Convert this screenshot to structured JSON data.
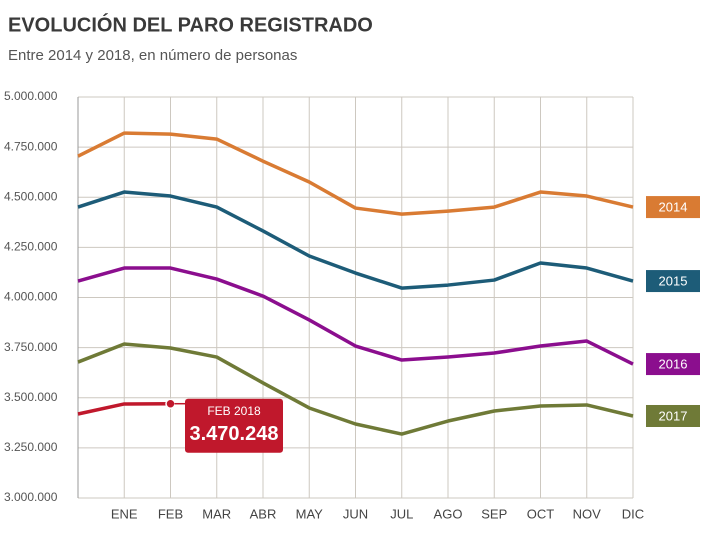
{
  "chart_data": {
    "type": "line",
    "title": "EVOLUCIÓN DEL PARO REGISTRADO",
    "subtitle": "Entre 2014 y 2018, en número de personas",
    "categories": [
      null,
      "ENE",
      "FEB",
      "MAR",
      "ABR",
      "MAY",
      "JUN",
      "JUL",
      "AGO",
      "SEP",
      "OCT",
      "NOV",
      "DIC"
    ],
    "series": [
      {
        "name": "2014",
        "color": "#d97b33",
        "values": [
          4705000,
          4820000,
          4815000,
          4790000,
          4680000,
          4576000,
          4446000,
          4416000,
          4431000,
          4451000,
          4526000,
          4506000,
          4451000
        ]
      },
      {
        "name": "2015",
        "color": "#1d5c78",
        "values": [
          4451000,
          4526000,
          4506000,
          4451000,
          4332000,
          4207000,
          4122000,
          4047000,
          4062000,
          4087000,
          4172000,
          4147000,
          4082000
        ]
      },
      {
        "name": "2016",
        "color": "#8b0e8e",
        "values": [
          4082000,
          4147000,
          4147000,
          4092000,
          4007000,
          3888000,
          3758000,
          3688000,
          3703000,
          3723000,
          3758000,
          3783000,
          3668000
        ]
      },
      {
        "name": "2017",
        "color": "#6f7a37",
        "values": [
          3678000,
          3768000,
          3748000,
          3703000,
          3574000,
          3449000,
          3369000,
          3319000,
          3384000,
          3434000,
          3459000,
          3464000,
          3409000
        ]
      },
      {
        "color": "#c0182c",
        "values": [
          3419000,
          3469000,
          3470248,
          null,
          null,
          null,
          null,
          null,
          null,
          null,
          null,
          null,
          null
        ],
        "value_labels": [
          null,
          null,
          "3.470.248",
          null,
          null,
          null,
          null,
          null,
          null,
          null,
          null,
          null,
          null
        ]
      }
    ],
    "annotation": "FEB 2018",
    "ylim": [
      3000000,
      5000000
    ],
    "yticks": [
      {
        "value": 3000000,
        "label": "3.000.000"
      },
      {
        "value": 3250000,
        "label": "3.250.000"
      },
      {
        "value": 3500000,
        "label": "3.500.000"
      },
      {
        "value": 3750000,
        "label": "3.750.000"
      },
      {
        "value": 4000000,
        "label": "4.000.000"
      },
      {
        "value": 4250000,
        "label": "4.250.000"
      },
      {
        "value": 4500000,
        "label": "4.500.000"
      },
      {
        "value": 4750000,
        "label": "4.750.000"
      },
      {
        "value": 5000000,
        "label": "5.000.000"
      }
    ],
    "grid": true
  }
}
